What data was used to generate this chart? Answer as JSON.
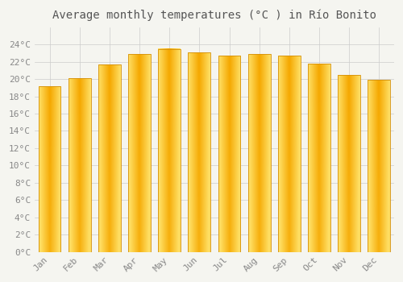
{
  "title": "Average monthly temperatures (°C ) in Río Bonito",
  "months": [
    "Jan",
    "Feb",
    "Mar",
    "Apr",
    "May",
    "Jun",
    "Jul",
    "Aug",
    "Sep",
    "Oct",
    "Nov",
    "Dec"
  ],
  "temperatures": [
    19.2,
    20.1,
    21.7,
    22.9,
    23.5,
    23.1,
    22.7,
    22.9,
    22.7,
    21.8,
    20.5,
    19.9
  ],
  "bar_color_center": "#FFD966",
  "bar_color_edge": "#F5A800",
  "background_color": "#f5f5f0",
  "plot_bg_color": "#f5f5f0",
  "grid_color": "#cccccc",
  "ylim": [
    0,
    26
  ],
  "yticks": [
    0,
    2,
    4,
    6,
    8,
    10,
    12,
    14,
    16,
    18,
    20,
    22,
    24
  ],
  "title_fontsize": 10,
  "tick_fontsize": 8,
  "tick_color": "#888888",
  "title_color": "#555555",
  "fig_width": 5.0,
  "fig_height": 3.5,
  "dpi": 100,
  "bar_width": 0.75
}
